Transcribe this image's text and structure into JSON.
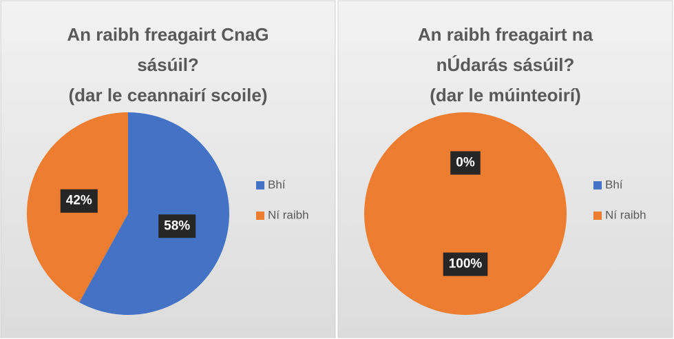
{
  "chart_data": [
    {
      "type": "pie",
      "title": [
        "An raibh freagairt CnaG",
        "sásúil?",
        "(dar le ceannairí scoile)"
      ],
      "categories": [
        "Bhí",
        "Ní raibh"
      ],
      "values": [
        58,
        42
      ],
      "value_labels": [
        "58%",
        "42%"
      ],
      "colors": [
        "#4472c4",
        "#ed7d31"
      ],
      "legend": "right"
    },
    {
      "type": "pie",
      "title": [
        "An raibh freagairt na",
        "nÚdarás sásúil?",
        "(dar le múinteoirí)"
      ],
      "categories": [
        "Bhí",
        "Ní raibh"
      ],
      "values": [
        0,
        100
      ],
      "value_labels": [
        "0%",
        "100%"
      ],
      "colors": [
        "#4472c4",
        "#ed7d31"
      ],
      "legend": "right"
    }
  ]
}
